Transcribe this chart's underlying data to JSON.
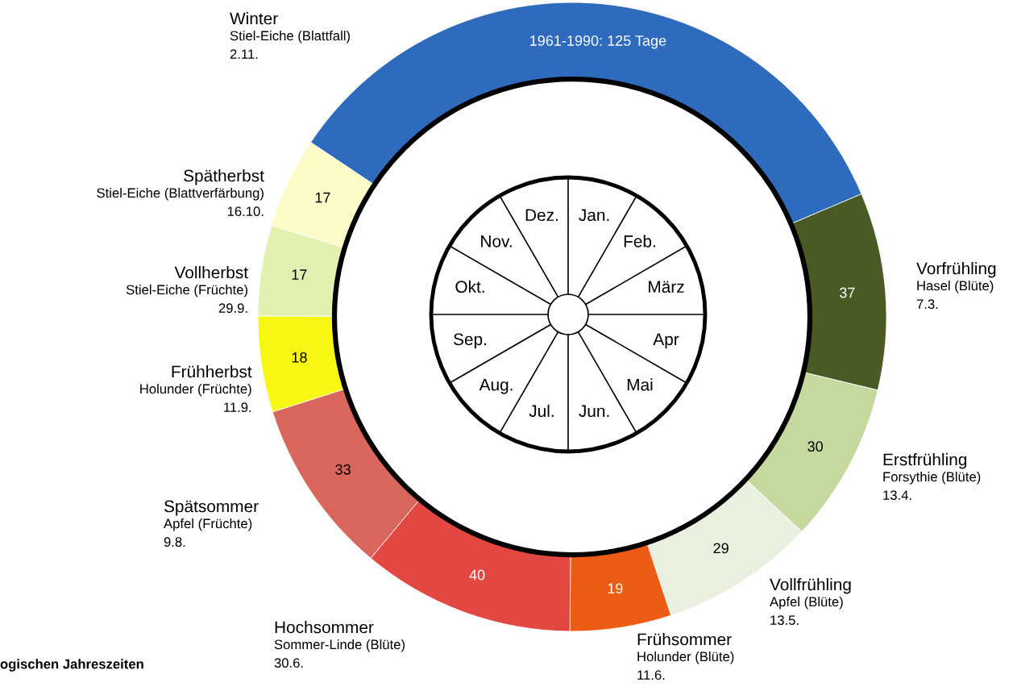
{
  "chart_data": {
    "type": "donut",
    "categories": [
      "Winter",
      "Vorfrühling",
      "Erstfrühling",
      "Vollfrühling",
      "Frühsommer",
      "Hochsommer",
      "Spätsommer",
      "Frühherbst",
      "Vollherbst",
      "Spätherbst"
    ],
    "values": [
      125,
      37,
      30,
      29,
      19,
      40,
      33,
      18,
      17,
      17
    ],
    "value_labels": [
      "1961-1990: 125 Tage",
      "37",
      "30",
      "29",
      "19",
      "40",
      "33",
      "18",
      "17",
      "17"
    ],
    "colors": [
      "#2e6bbd",
      "#4a5a25",
      "#c5d89e",
      "#eaf0df",
      "#ed5c14",
      "#e34741",
      "#d9665c",
      "#f7f713",
      "#e2f0b0",
      "#fbfcc8"
    ],
    "annotations": [
      {
        "text": "Stiel-Eiche (Blattfall)\n2.11.",
        "x": "Winter"
      },
      {
        "text": "Hasel (Blüte)\n7.3.",
        "x": "Vorfrühling"
      },
      {
        "text": "Forsythie (Blüte)\n13.4.",
        "x": "Erstfrühling"
      },
      {
        "text": "Apfel (Blüte)\n13.5.",
        "x": "Vollfrühling"
      },
      {
        "text": "Holunder (Blüte)\n11.6.",
        "x": "Frühsommer"
      },
      {
        "text": "Sommer-Linde (Blüte)\n30.6.",
        "x": "Hochsommer"
      },
      {
        "text": "Apfel (Früchte)\n9.8.",
        "x": "Spätsommer"
      },
      {
        "text": "Holunder (Früchte)\n11.9.",
        "x": "Frühherbst"
      },
      {
        "text": "Stiel-Eiche (Früchte)\n29.9.",
        "x": "Vollherbst"
      },
      {
        "text": "Stiel-Eiche (Blattverfärbung)\n16.10.",
        "x": "Spätherbst"
      },
      "Jan.",
      "Feb.",
      "März",
      "Apr",
      "Mai",
      "Jun.",
      "Jul.",
      "Aug.",
      "Sep.",
      "Okt.",
      "Nov.",
      "Dez.",
      "ogischen Jahreszeiten"
    ],
    "legend": false
  }
}
